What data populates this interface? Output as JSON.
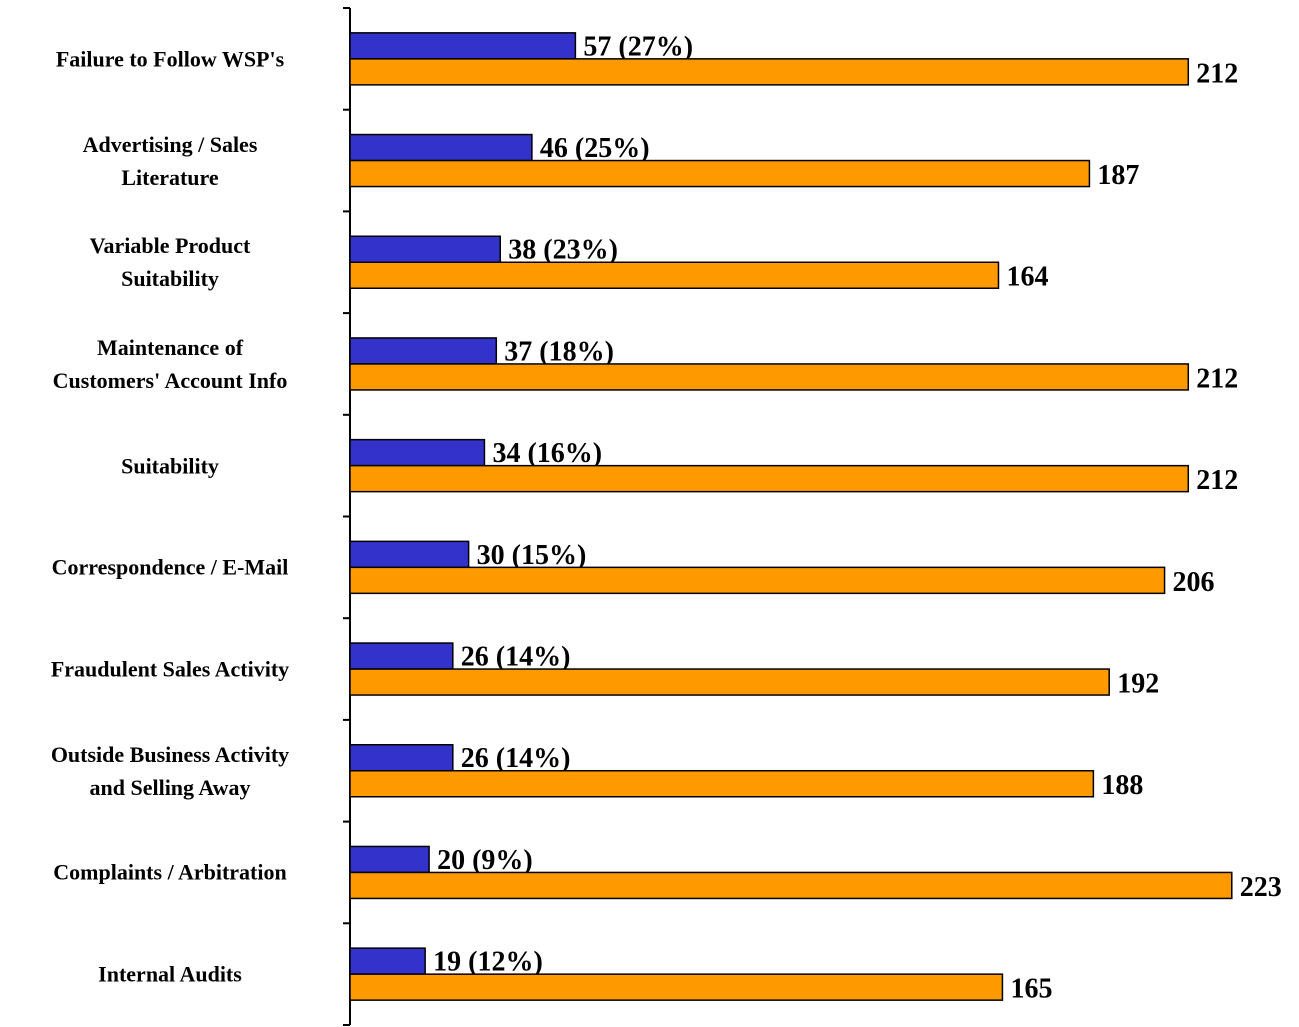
{
  "chart_data": {
    "type": "hbar",
    "categories": [
      "Failure to Follow WSP's",
      "Advertising / Sales\nLiterature",
      "Variable Product\nSuitability",
      "Maintenance of\nCustomers' Account Info",
      "Suitability",
      "Correspondence / E-Mail",
      "Fraudulent Sales Activity",
      "Outside Business Activity\nand Selling Away",
      "Complaints / Arbitration",
      "Internal Audits"
    ],
    "series": [
      {
        "color": "#3333cc",
        "values": [
          57,
          46,
          38,
          37,
          34,
          30,
          26,
          26,
          20,
          19
        ],
        "value_labels": [
          "57 (27%)",
          "46 (25%)",
          "38 (23%)",
          "37 (18%)",
          "34 (16%)",
          "30 (15%)",
          "26 (14%)",
          "26 (14%)",
          "20 (9%)",
          "19 (12%)"
        ]
      },
      {
        "color": "#ff9900",
        "values": [
          212,
          187,
          164,
          212,
          212,
          206,
          192,
          188,
          223,
          165
        ]
      }
    ],
    "xlim": [
      0,
      240
    ]
  }
}
